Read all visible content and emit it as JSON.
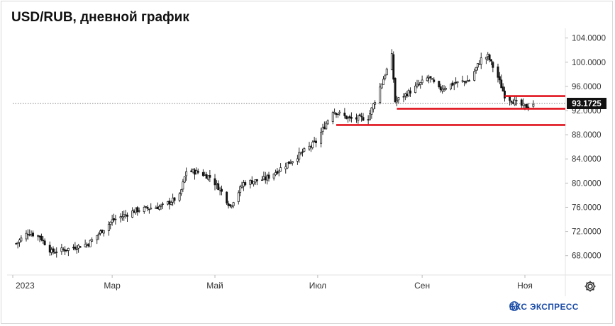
{
  "title": "USD/RUB, дневной график",
  "brand": {
    "name": "БКС ЭКСПРЕСС",
    "color": "#1f4fa8"
  },
  "settings_icon": "gear-icon",
  "colors": {
    "candle": "#111111",
    "support_line": "#e0141e",
    "last_price_bg": "#111111",
    "last_price_text": "#ffffff",
    "grid": "#e6e6e6"
  },
  "chart_data": {
    "type": "candlestick",
    "title": "USD/RUB, дневной график",
    "y_axis": {
      "position": "right",
      "range": [
        65.0,
        105.0
      ],
      "ticks": [
        "104.0000",
        "100.0000",
        "96.0000",
        "92.0000",
        "88.0000",
        "84.0000",
        "80.0000",
        "76.0000",
        "72.0000",
        "68.0000"
      ]
    },
    "x_axis": {
      "ticks": [
        "2023",
        "Мар",
        "Май",
        "Июл",
        "Сен",
        "Ноя"
      ]
    },
    "last_price": {
      "label": "93.1725",
      "value": 93.1725
    },
    "horizontal_lines": [
      {
        "value": 94.4,
        "from": "2023-10-20",
        "to": "2023-11-22",
        "color": "#e0141e"
      },
      {
        "value": 92.3,
        "from": "2023-08-17",
        "to": "2023-11-22",
        "color": "#e0141e"
      },
      {
        "value": 89.6,
        "from": "2023-07-12",
        "to": "2023-11-22",
        "color": "#e0141e"
      }
    ],
    "price_path_daily_close": [
      {
        "date": "2023-01-03",
        "close": 70.0
      },
      {
        "date": "2023-01-10",
        "close": 71.8
      },
      {
        "date": "2023-01-17",
        "close": 71.2
      },
      {
        "date": "2023-01-24",
        "close": 68.6
      },
      {
        "date": "2023-02-01",
        "close": 69.0
      },
      {
        "date": "2023-02-15",
        "close": 70.0
      },
      {
        "date": "2023-03-01",
        "close": 73.8
      },
      {
        "date": "2023-03-15",
        "close": 75.5
      },
      {
        "date": "2023-03-31",
        "close": 76.2
      },
      {
        "date": "2023-04-10",
        "close": 77.8
      },
      {
        "date": "2023-04-14",
        "close": 82.0
      },
      {
        "date": "2023-04-21",
        "close": 81.8
      },
      {
        "date": "2023-04-28",
        "close": 81.0
      },
      {
        "date": "2023-05-04",
        "close": 79.0
      },
      {
        "date": "2023-05-10",
        "close": 76.2
      },
      {
        "date": "2023-05-18",
        "close": 80.0
      },
      {
        "date": "2023-05-31",
        "close": 80.7
      },
      {
        "date": "2023-06-15",
        "close": 83.6
      },
      {
        "date": "2023-06-30",
        "close": 86.8
      },
      {
        "date": "2023-07-10",
        "close": 92.0
      },
      {
        "date": "2023-07-20",
        "close": 90.6
      },
      {
        "date": "2023-07-31",
        "close": 90.8
      },
      {
        "date": "2023-08-10",
        "close": 98.0
      },
      {
        "date": "2023-08-14",
        "close": 101.0
      },
      {
        "date": "2023-08-16",
        "close": 93.5
      },
      {
        "date": "2023-08-25",
        "close": 95.2
      },
      {
        "date": "2023-09-05",
        "close": 97.5
      },
      {
        "date": "2023-09-11",
        "close": 95.5
      },
      {
        "date": "2023-09-20",
        "close": 96.5
      },
      {
        "date": "2023-09-29",
        "close": 97.0
      },
      {
        "date": "2023-10-06",
        "close": 100.5
      },
      {
        "date": "2023-10-10",
        "close": 101.0
      },
      {
        "date": "2023-10-16",
        "close": 97.5
      },
      {
        "date": "2023-10-20",
        "close": 94.5
      },
      {
        "date": "2023-10-27",
        "close": 93.2
      },
      {
        "date": "2023-11-01",
        "close": 92.6
      },
      {
        "date": "2023-11-06",
        "close": 93.1725
      }
    ]
  }
}
